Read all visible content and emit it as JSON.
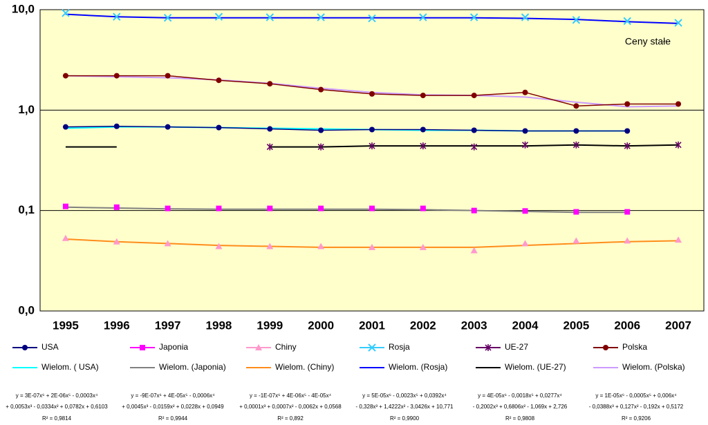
{
  "chart_data": {
    "type": "line",
    "annotation": "Ceny stałe",
    "log": true,
    "grid": true,
    "legend": "bottom",
    "categories": [
      "1995",
      "1996",
      "1997",
      "1998",
      "1999",
      "2000",
      "2001",
      "2002",
      "2003",
      "2004",
      "2005",
      "2006",
      "2007"
    ],
    "ylim": [
      0.01,
      10
    ],
    "yticks": [
      {
        "value": 0.01,
        "label": "0,0"
      },
      {
        "value": 0.1,
        "label": "0,1"
      },
      {
        "value": 1,
        "label": "1,0"
      },
      {
        "value": 10,
        "label": "10,0"
      }
    ],
    "series": [
      {
        "name": "USA",
        "color": "#000080",
        "marker": "circle",
        "line": true,
        "values": [
          0.68,
          0.69,
          0.68,
          0.67,
          0.65,
          0.63,
          0.64,
          0.64,
          0.63,
          0.62,
          0.62,
          0.62,
          null
        ]
      },
      {
        "name": "Japonia",
        "color": "#ff00ff",
        "marker": "square",
        "line": false,
        "values": [
          0.11,
          0.108,
          0.105,
          0.105,
          0.105,
          0.105,
          0.105,
          0.105,
          0.1,
          0.099,
          0.097,
          0.097,
          null
        ]
      },
      {
        "name": "Chiny",
        "color": "#ff99cc",
        "marker": "triangle",
        "line": false,
        "values": [
          0.053,
          0.049,
          0.047,
          0.044,
          0.044,
          0.044,
          0.043,
          0.043,
          0.04,
          0.047,
          0.05,
          0.05,
          0.051
        ]
      },
      {
        "name": "Rosja",
        "color": "#33ccff",
        "marker": "x",
        "line": false,
        "values": [
          9.25,
          8.5,
          8.3,
          8.5,
          8.4,
          8.4,
          8.2,
          8.4,
          8.4,
          8.4,
          7.9,
          7.7,
          7.4
        ]
      },
      {
        "name": "UE-27",
        "color": "#660066",
        "marker": "star",
        "line": false,
        "values": [
          null,
          null,
          null,
          null,
          0.43,
          0.43,
          0.44,
          0.44,
          0.43,
          0.45,
          0.45,
          0.44,
          0.45
        ]
      },
      {
        "name": "Polska",
        "color": "#800000",
        "marker": "circle",
        "line": true,
        "values": [
          2.2,
          2.2,
          2.2,
          1.98,
          1.83,
          1.6,
          1.45,
          1.4,
          1.4,
          1.5,
          1.1,
          1.15,
          1.15
        ]
      },
      {
        "name": "Wielom. ( USA)",
        "color": "#00ffff",
        "marker": "none",
        "line": true,
        "values": [
          0.66,
          0.68,
          0.68,
          0.67,
          0.66,
          0.65,
          0.64,
          0.63,
          0.63,
          0.62,
          0.62,
          0.62,
          null
        ]
      },
      {
        "name": "Wielom. (Japonia)",
        "color": "#808080",
        "marker": "none",
        "line": true,
        "values": [
          0.108,
          0.106,
          0.104,
          0.103,
          0.103,
          0.103,
          0.103,
          0.102,
          0.1,
          0.098,
          0.096,
          0.096,
          null
        ]
      },
      {
        "name": "Wielom. (Chiny)",
        "color": "#ff8c1a",
        "marker": "none",
        "line": true,
        "values": [
          0.052,
          0.049,
          0.047,
          0.045,
          0.044,
          0.043,
          0.043,
          0.043,
          0.043,
          0.045,
          0.047,
          0.049,
          0.05
        ]
      },
      {
        "name": "Wielom. (Rosja)",
        "color": "#0000ff",
        "marker": "none",
        "line": true,
        "values": [
          9.0,
          8.5,
          8.3,
          8.3,
          8.3,
          8.3,
          8.3,
          8.3,
          8.3,
          8.2,
          8.0,
          7.6,
          7.3
        ]
      },
      {
        "name": "Wielom. (UE-27)",
        "color": "#000000",
        "marker": "none",
        "line": true,
        "values": [
          0.43,
          0.43,
          null,
          null,
          0.43,
          0.43,
          0.44,
          0.44,
          0.44,
          0.44,
          0.45,
          0.44,
          0.45
        ]
      },
      {
        "name": "Wielom. (Polska)",
        "color": "#cc99ff",
        "marker": "none",
        "line": true,
        "values": [
          2.2,
          2.15,
          2.1,
          2.0,
          1.85,
          1.65,
          1.5,
          1.42,
          1.4,
          1.35,
          1.2,
          1.08,
          1.1
        ]
      }
    ],
    "equations": [
      [
        "y = 3E-07x⁶ + 2E-06x⁵ - 0,0003x⁴",
        "+ 0,0053x³ - 0,0334x² + 0,0782x + 0,6103",
        "R² = 0,9814"
      ],
      [
        "y = -9E-07x⁶ + 4E-05x⁵ - 0,0006x⁴",
        "+ 0,0045x³ - 0,0159x² + 0,0228x + 0,0949",
        "R² = 0,9944"
      ],
      [
        "y = -1E-07x⁶ + 4E-06x⁵ - 4E-05x⁴",
        "+ 0,0001x³ + 0,0007x² - 0,0062x + 0,0568",
        "R² = 0,892"
      ],
      [
        "y = 5E-05x⁶ - 0,0023x⁵ + 0,0392x⁴",
        "- 0,328x³ + 1,4222x² - 3,0426x + 10,771",
        "R² = 0,9900"
      ],
      [
        "y = 4E-05x⁶ - 0,0018x⁵ + 0,0277x⁴",
        "- 0,2002x³ + 0,6806x² - 1,069x + 2,726",
        "R² = 0,9808"
      ],
      [
        "y = 1E-05x⁶ - 0,0005x⁵ + 0,006x⁴",
        "- 0,0388x³ + 0,127x² - 0,192x + 0,5172",
        "R² = 0,9206"
      ]
    ]
  }
}
